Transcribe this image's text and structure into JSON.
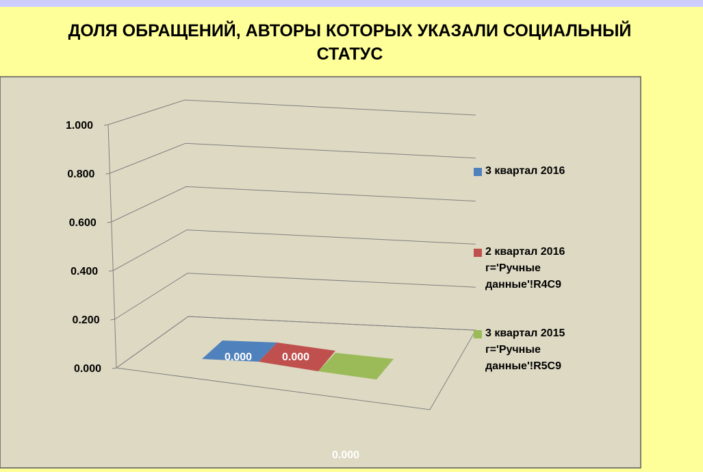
{
  "chart_data": {
    "type": "bar3d",
    "title": "ДОЛЯ ОБРАЩЕНИЙ, АВТОРЫ КОТОРЫХ УКАЗАЛИ СОЦИАЛЬНЫЙ СТАТУС",
    "series": [
      {
        "name": "3 квартал 2016",
        "color": "#4f81bd",
        "values": [
          0
        ],
        "value_labels": [
          "0.000"
        ]
      },
      {
        "name": "2 квартал 2016 г='Ручные данные'!R4C9",
        "color": "#c0504d",
        "values": [
          0
        ],
        "value_labels": [
          "0.000"
        ]
      },
      {
        "name": "3 квартал 2015 г='Ручные данные'!R5C9",
        "color": "#9bbb59",
        "values": [
          0
        ],
        "value_labels": [
          "0.000"
        ]
      }
    ],
    "ylim": [
      0,
      1
    ],
    "yticks": [
      {
        "value": 0,
        "label": "0.000"
      },
      {
        "value": 0.2,
        "label": "0.200"
      },
      {
        "value": 0.4,
        "label": "0.400"
      },
      {
        "value": 0.6,
        "label": "0.600"
      },
      {
        "value": 0.8,
        "label": "0.800"
      },
      {
        "value": 1,
        "label": "1.000"
      }
    ],
    "grid": true,
    "legend": "right"
  }
}
